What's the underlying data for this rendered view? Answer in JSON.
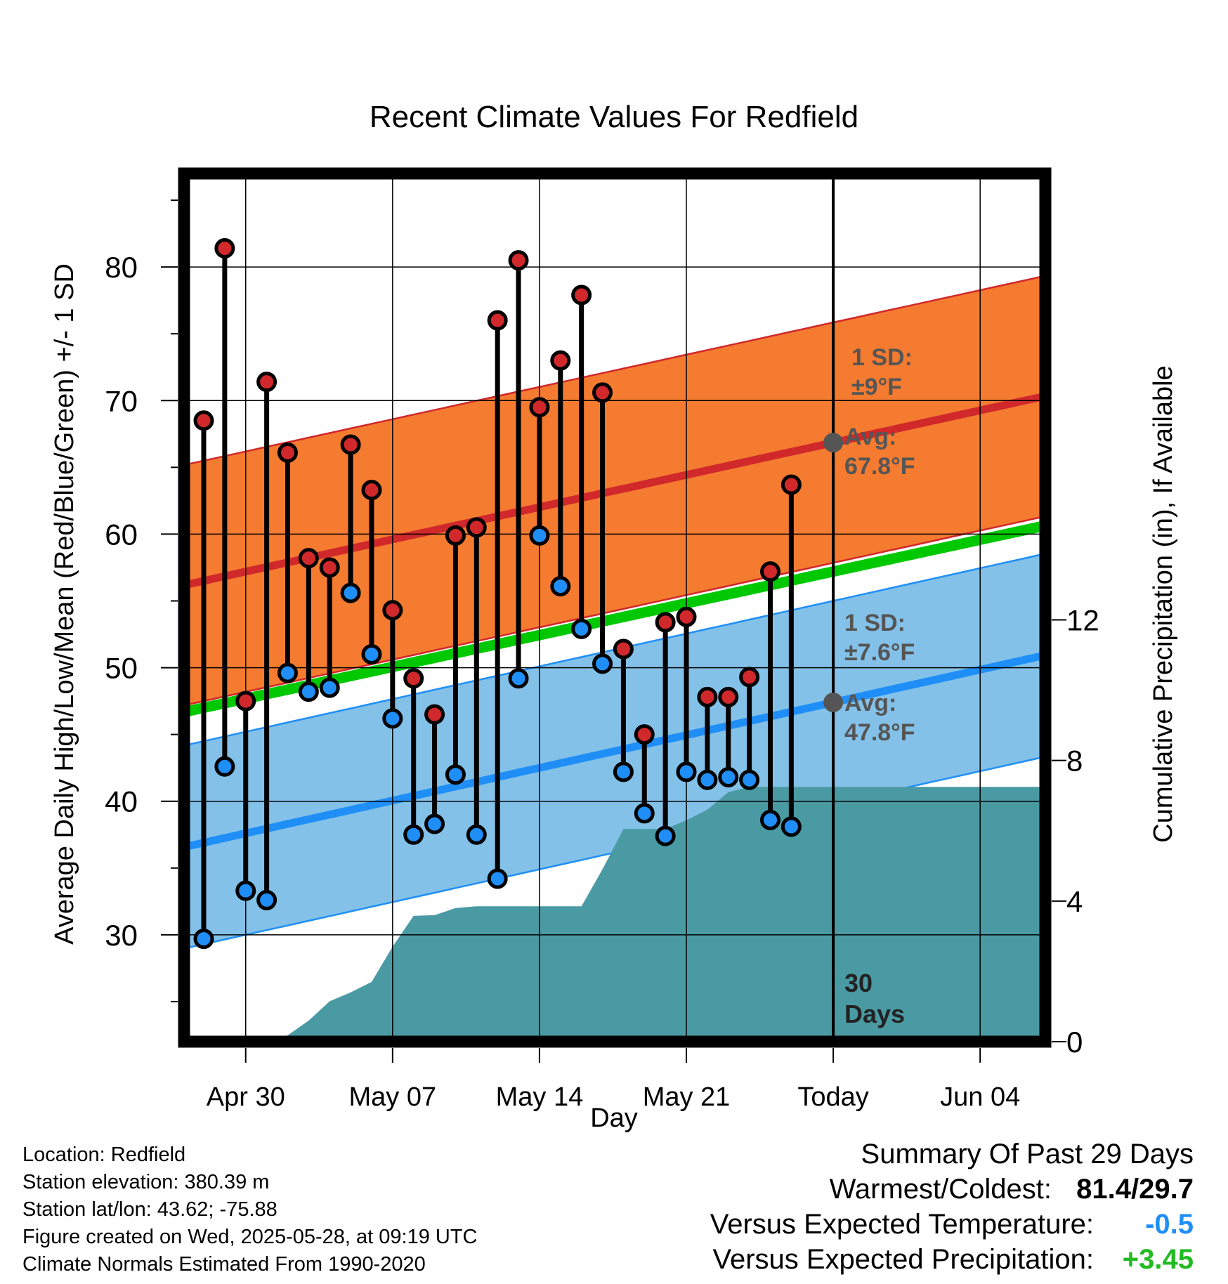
{
  "chart_data": {
    "type": "line",
    "title": "Recent Climate Values For Redfield",
    "xlabel": "Day",
    "ylabel": "Average Daily High/Low/Mean (Red/Blue/Green) +/- 1 SD",
    "y2label": "Cumulative Precipitation (in), If Available",
    "x_tick_labels": [
      "Apr 30",
      "May 07",
      "May 14",
      "May 21",
      "Today",
      "Jun 04"
    ],
    "y_ticks": [
      30,
      40,
      50,
      60,
      70,
      80
    ],
    "y2_ticks": [
      0,
      4,
      8,
      12
    ],
    "ylim": [
      22,
      87
    ],
    "y2lim": [
      0,
      24.7
    ],
    "colors": {
      "high": "#d0282b",
      "low": "#1f8ff7",
      "mean": "#00c800",
      "high_band": "#f47b30",
      "low_band": "#83c1e8",
      "precip": "#4a9aa4"
    },
    "days": [
      "Apr 28",
      "Apr 29",
      "Apr 30",
      "May 01",
      "May 02",
      "May 03",
      "May 04",
      "May 05",
      "May 06",
      "May 07",
      "May 08",
      "May 09",
      "May 10",
      "May 11",
      "May 12",
      "May 13",
      "May 14",
      "May 15",
      "May 16",
      "May 17",
      "May 18",
      "May 19",
      "May 20",
      "May 21",
      "May 22",
      "May 23",
      "May 24",
      "May 25",
      "May 26"
    ],
    "observed_high": [
      68.5,
      81.4,
      47.5,
      71.4,
      66.1,
      58.2,
      57.5,
      66.7,
      63.3,
      54.3,
      49.2,
      46.5,
      59.9,
      60.5,
      76.0,
      80.5,
      69.5,
      73.0,
      77.9,
      70.6,
      51.4,
      45.0,
      53.4,
      53.8,
      47.8,
      47.8,
      49.3,
      57.2,
      63.7
    ],
    "observed_low": [
      29.7,
      42.6,
      33.3,
      32.6,
      49.6,
      48.2,
      48.5,
      55.6,
      51.0,
      46.2,
      37.5,
      38.3,
      42.0,
      37.5,
      34.2,
      49.2,
      59.9,
      56.1,
      52.9,
      50.3,
      42.2,
      39.1,
      37.4,
      42.2,
      41.6,
      41.8,
      41.6,
      38.6,
      38.1
    ],
    "normal_high_mean": [
      56.5,
      70.3
    ],
    "normal_high_sd": 9,
    "normal_low_mean": [
      36.9,
      50.9
    ],
    "normal_low_sd": 7.6,
    "normal_mean": [
      47.0,
      60.6
    ],
    "cumulative_precip": [
      0,
      0,
      0,
      0.05,
      0.18,
      0.6,
      1.15,
      1.4,
      1.7,
      2.7,
      3.58,
      3.6,
      3.8,
      3.85,
      3.85,
      3.85,
      3.85,
      3.85,
      3.85,
      4.9,
      6.05,
      6.05,
      6.05,
      6.3,
      6.6,
      7.1,
      7.25,
      7.25,
      7.25
    ],
    "annotations": {
      "high_sd_label": "1 SD:",
      "high_sd_value": "±9°F",
      "high_avg_label": "Avg:",
      "high_avg_value": "67.8°F",
      "low_sd_label": "1 SD:",
      "low_sd_value": "±7.6°F",
      "low_avg_label": "Avg:",
      "low_avg_value": "47.8°F",
      "window_num": "30",
      "window_unit": "Days"
    }
  },
  "footer": {
    "location": "Location: Redfield",
    "elevation": "Station elevation: 380.39 m",
    "latlon": "Station lat/lon: 43.62; -75.88",
    "created": "Figure created on Wed, 2025-05-28, at 09:19 UTC",
    "normals": "Climate Normals Estimated From 1990-2020"
  },
  "summary": {
    "heading": "Summary Of Past 29 Days",
    "warmest_coldest_label": "Warmest/Coldest:",
    "warmest_coldest_value": "81.4/29.7",
    "temp_label": "Versus Expected Temperature:",
    "temp_value": "-0.5",
    "temp_color": "#1f8ff7",
    "precip_label": "Versus Expected Precipitation:",
    "precip_value": "+3.45",
    "precip_color": "#22bb22"
  }
}
